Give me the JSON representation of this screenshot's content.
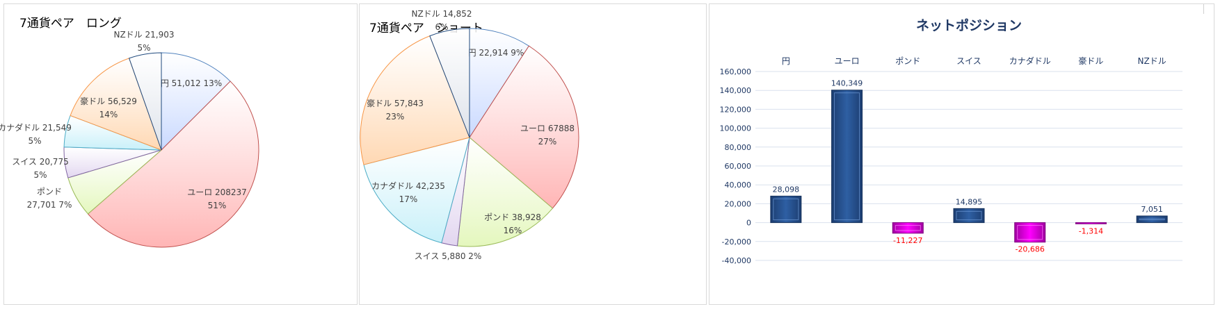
{
  "chart_data": [
    {
      "type": "pie",
      "title": "7通貨ペア　ロング",
      "slices": [
        {
          "name": "円",
          "value": 51012,
          "percent": "13%",
          "color": "#c9d9ff",
          "stroke": "#4f81bd",
          "label": [
            "円 51,012 13%"
          ]
        },
        {
          "name": "ユーロ",
          "value": 208237,
          "percent": "51%",
          "color": "#ffb5b5",
          "stroke": "#c0504d",
          "label": [
            "ユーロ 208237",
            "51%"
          ]
        },
        {
          "name": "ポンド",
          "value": 27701,
          "percent": "7%",
          "color": "#e4f7bd",
          "stroke": "#9bbb59",
          "label": [
            "ポンド",
            "27,701 7%"
          ]
        },
        {
          "name": "スイス",
          "value": 20775,
          "percent": "5%",
          "color": "#e2d6f0",
          "stroke": "#8064a2",
          "label": [
            "スイス 20,775",
            "5%"
          ]
        },
        {
          "name": "カナダドル",
          "value": 21549,
          "percent": "5%",
          "color": "#c8f0f9",
          "stroke": "#4bacc6",
          "label": [
            "カナダドル 21,549",
            "5%"
          ]
        },
        {
          "name": "豪ドル",
          "value": 56529,
          "percent": "14%",
          "color": "#ffd8b3",
          "stroke": "#f79646",
          "label": [
            "豪ドル 56,529",
            "14%"
          ]
        },
        {
          "name": "NZドル",
          "value": 21903,
          "percent": "5%",
          "color": "#dde2ea",
          "stroke": "#1f497d",
          "label": [
            "NZドル 21,903",
            "5%"
          ]
        }
      ]
    },
    {
      "type": "pie",
      "title": "7通貨ペア　ショート",
      "slices": [
        {
          "name": "円",
          "value": 22914,
          "percent": "9%",
          "color": "#c9d9ff",
          "stroke": "#4f81bd",
          "label": [
            "円 22,914 9%"
          ]
        },
        {
          "name": "ユーロ",
          "value": 67888,
          "percent": "27%",
          "color": "#ffb5b5",
          "stroke": "#c0504d",
          "label": [
            "ユーロ 67888",
            "27%"
          ]
        },
        {
          "name": "ポンド",
          "value": 38928,
          "percent": "16%",
          "color": "#e4f7bd",
          "stroke": "#9bbb59",
          "label": [
            "ポンド 38,928",
            "16%"
          ]
        },
        {
          "name": "スイス",
          "value": 5880,
          "percent": "2%",
          "color": "#e2d6f0",
          "stroke": "#8064a2",
          "label": [
            "スイス 5,880 2%"
          ]
        },
        {
          "name": "カナダドル",
          "value": 42235,
          "percent": "17%",
          "color": "#c8f0f9",
          "stroke": "#4bacc6",
          "label": [
            "カナダドル 42,235",
            "17%"
          ]
        },
        {
          "name": "豪ドル",
          "value": 57843,
          "percent": "23%",
          "color": "#ffd8b3",
          "stroke": "#f79646",
          "label": [
            "豪ドル 57,843",
            "23%"
          ]
        },
        {
          "name": "NZドル",
          "value": 14852,
          "percent": "6%",
          "color": "#dde2ea",
          "stroke": "#1f497d",
          "label": [
            "NZドル 14,852",
            "6%"
          ]
        }
      ]
    },
    {
      "type": "bar",
      "title": "ネットポジション",
      "categories": [
        "円",
        "ユーロ",
        "ポンド",
        "スイス",
        "カナダドル",
        "豪ドル",
        "NZドル"
      ],
      "values": [
        28098,
        140349,
        -11227,
        14895,
        -20686,
        -1314,
        7051
      ],
      "value_labels": [
        "28,098",
        "140,349",
        "-11,227",
        "14,895",
        "-20,686",
        "-1,314",
        "7,051"
      ],
      "ylim": [
        -40000,
        160000
      ],
      "yticks": [
        160000,
        140000,
        120000,
        100000,
        80000,
        60000,
        40000,
        20000,
        0,
        -20000,
        -40000
      ],
      "ytick_labels": [
        "160,000",
        "140,000",
        "120,000",
        "100,000",
        "80,000",
        "60,000",
        "40,000",
        "20,000",
        "0",
        "-20,000",
        "-40,000"
      ],
      "grid": true,
      "colors": {
        "positive": "#2e5fa3",
        "negative": "#ff00ff",
        "positive_label": "#1f3864",
        "negative_label": "#ff0000"
      }
    }
  ]
}
